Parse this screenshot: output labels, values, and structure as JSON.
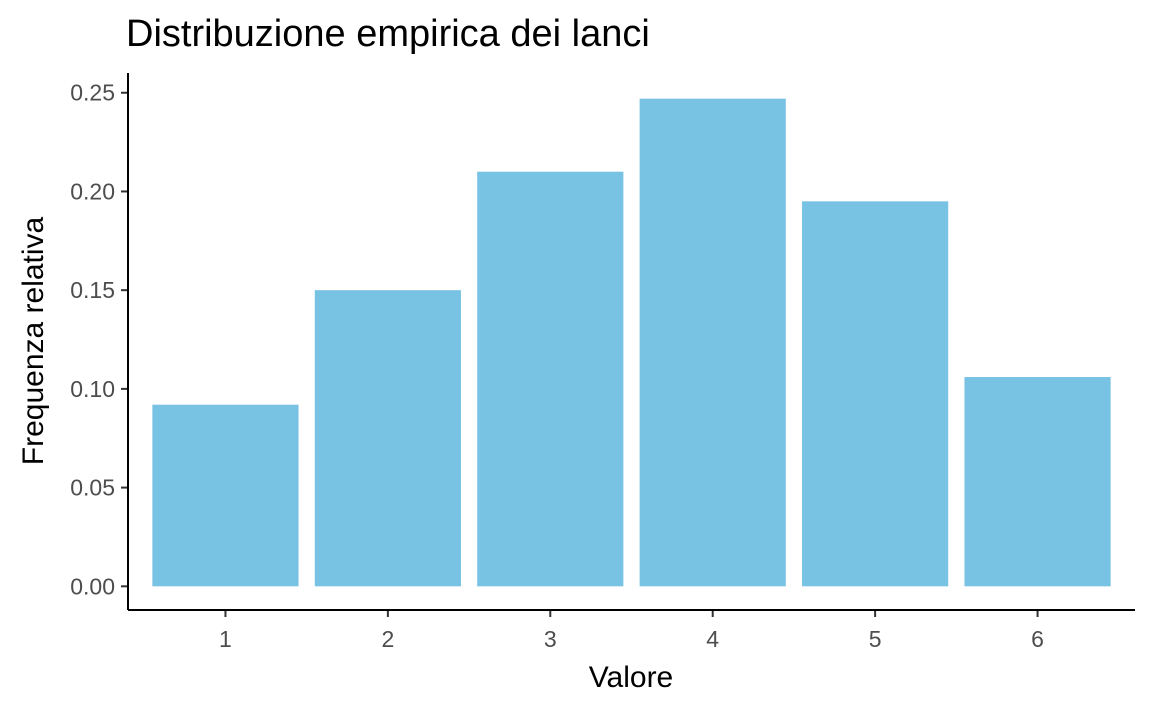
{
  "chart_data": {
    "type": "bar",
    "title": "Distribuzione empirica dei lanci",
    "xlabel": "Valore",
    "ylabel": "Frequenza relativa",
    "categories": [
      "1",
      "2",
      "3",
      "4",
      "5",
      "6"
    ],
    "values": [
      0.092,
      0.15,
      0.21,
      0.247,
      0.195,
      0.106
    ],
    "yticks": [
      "0.00",
      "0.05",
      "0.10",
      "0.15",
      "0.20",
      "0.25"
    ],
    "ylim": [
      -0.012,
      0.26
    ],
    "bar_color": "#78C2E4",
    "grid": false,
    "legend": "none"
  }
}
